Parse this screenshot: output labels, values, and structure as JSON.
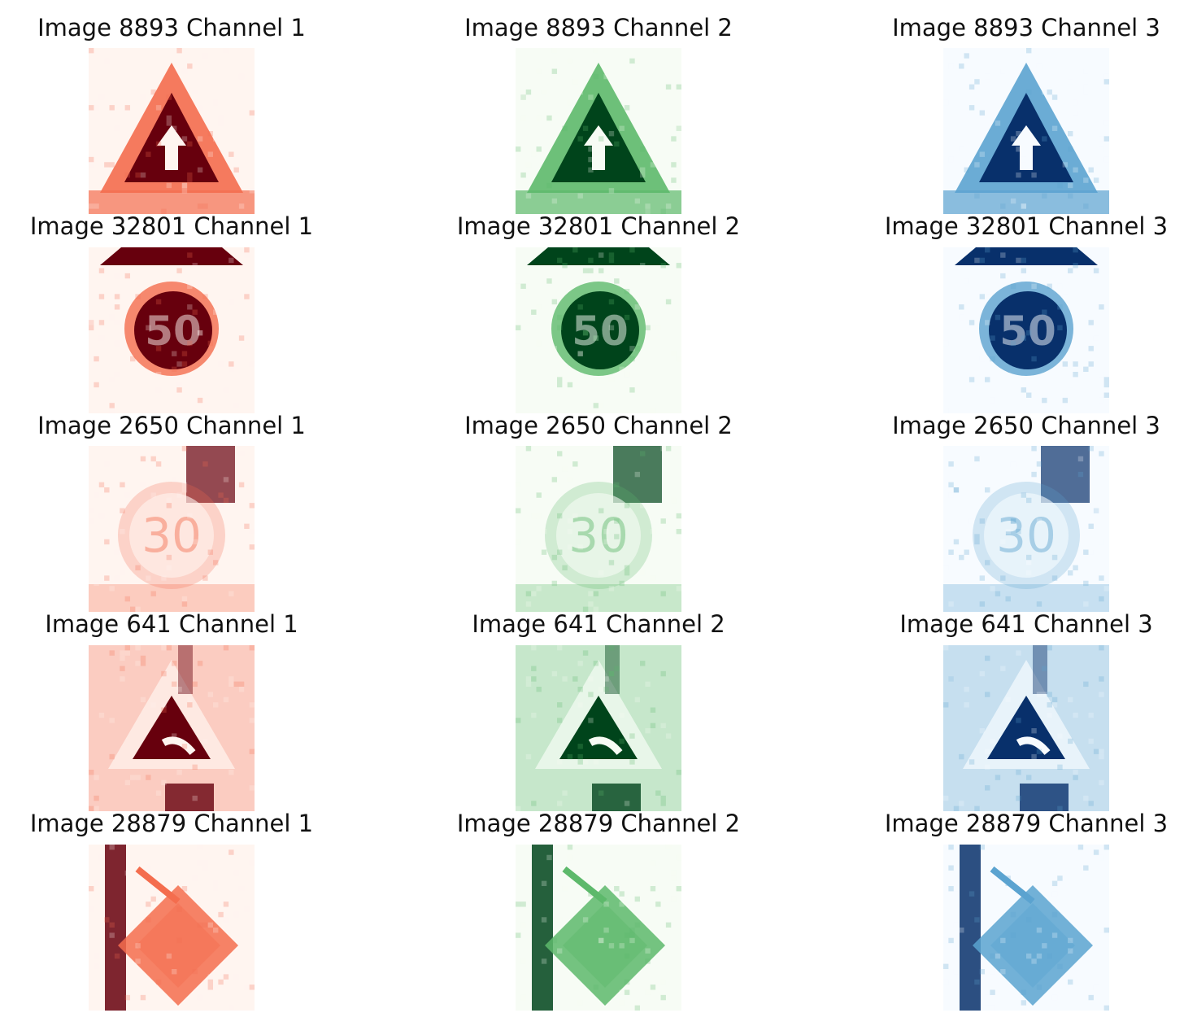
{
  "palette": {
    "Reds": {
      "light": "#fff5f0",
      "mid": "#f46d4e",
      "dark": "#67000d"
    },
    "Greens": {
      "light": "#f7fcf5",
      "mid": "#5db96b",
      "dark": "#00441b"
    },
    "Blues": {
      "light": "#f7fbff",
      "mid": "#5ba3d0",
      "dark": "#08306b"
    }
  },
  "channel_colormaps": [
    "Reds",
    "Greens",
    "Blues"
  ],
  "rows": [
    {
      "sign": "triangle-with-arrow",
      "panels": [
        {
          "title": "Image 8893 Channel 1"
        },
        {
          "title": "Image 8893 Channel 2"
        },
        {
          "title": "Image 8893 Channel 3"
        }
      ]
    },
    {
      "sign": "round-speed-50-with-triangle",
      "digits": "50",
      "panels": [
        {
          "title": "Image 32801 Channel 1"
        },
        {
          "title": "Image 32801 Channel 2"
        },
        {
          "title": "Image 32801 Channel 3"
        }
      ]
    },
    {
      "sign": "round-speed-30",
      "digits": "30",
      "panels": [
        {
          "title": "Image 2650 Channel 1"
        },
        {
          "title": "Image 2650 Channel 2"
        },
        {
          "title": "Image 2650 Channel 3"
        }
      ]
    },
    {
      "sign": "triangle-with-curve",
      "panels": [
        {
          "title": "Image 641 Channel 1"
        },
        {
          "title": "Image 641 Channel 2"
        },
        {
          "title": "Image 641 Channel 3"
        }
      ]
    },
    {
      "sign": "diamond-priority-road",
      "panels": [
        {
          "title": "Image 28879 Channel 1"
        },
        {
          "title": "Image 28879 Channel 2"
        },
        {
          "title": "Image 28879 Channel 3"
        }
      ]
    }
  ]
}
